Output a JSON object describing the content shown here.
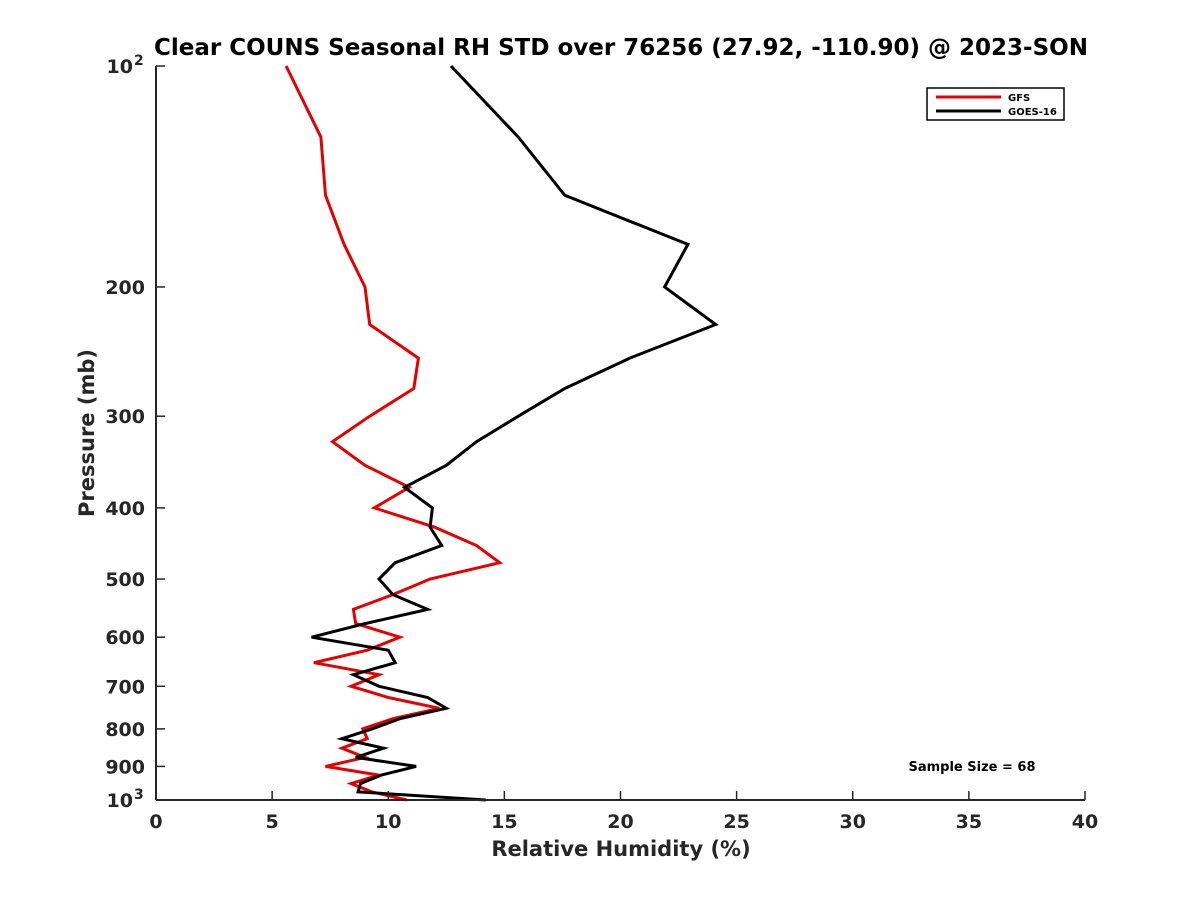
{
  "chart_data": {
    "type": "line",
    "title": "Clear COUNS Seasonal RH STD over 76256 (27.92, -110.90) @ 2023-SON",
    "xlabel": "Relative Humidity (%)",
    "ylabel": "Pressure (mb)",
    "xlim": [
      0,
      40
    ],
    "ylim": [
      100,
      1000
    ],
    "y_scale": "log",
    "y_reversed": true,
    "grid": false,
    "legend_position": "top-right",
    "x_ticks": [
      "0",
      "5",
      "10",
      "15",
      "20",
      "25",
      "30",
      "35",
      "40"
    ],
    "x_tick_values": [
      0,
      5,
      10,
      15,
      20,
      25,
      30,
      35,
      40
    ],
    "y_ticks": [
      {
        "value": 100,
        "base": "10",
        "exp": "2"
      },
      {
        "value": 200,
        "label": "200"
      },
      {
        "value": 300,
        "label": "300"
      },
      {
        "value": 400,
        "label": "400"
      },
      {
        "value": 500,
        "label": "500"
      },
      {
        "value": 600,
        "label": "600"
      },
      {
        "value": 700,
        "label": "700"
      },
      {
        "value": 800,
        "label": "800"
      },
      {
        "value": 900,
        "label": "900"
      },
      {
        "value": 1000,
        "base": "10",
        "exp": "3"
      }
    ],
    "annotation": "Sample Size = 68",
    "series": [
      {
        "name": "GFS",
        "color": "#e50000",
        "points": [
          [
            5.6,
            100
          ],
          [
            7.1,
            125
          ],
          [
            7.3,
            150
          ],
          [
            8.1,
            175
          ],
          [
            9.0,
            200
          ],
          [
            9.2,
            225
          ],
          [
            11.3,
            250
          ],
          [
            11.1,
            275
          ],
          [
            9.2,
            300
          ],
          [
            7.6,
            325
          ],
          [
            9.0,
            350
          ],
          [
            10.9,
            375
          ],
          [
            9.4,
            400
          ],
          [
            12.0,
            425
          ],
          [
            13.8,
            450
          ],
          [
            14.8,
            475
          ],
          [
            11.8,
            500
          ],
          [
            10.2,
            525
          ],
          [
            8.5,
            550
          ],
          [
            8.6,
            575
          ],
          [
            10.5,
            600
          ],
          [
            9.1,
            625
          ],
          [
            6.8,
            650
          ],
          [
            9.6,
            675
          ],
          [
            8.4,
            700
          ],
          [
            10.0,
            725
          ],
          [
            12.2,
            750
          ],
          [
            10.2,
            775
          ],
          [
            8.9,
            800
          ],
          [
            9.1,
            825
          ],
          [
            8.0,
            850
          ],
          [
            9.0,
            875
          ],
          [
            7.3,
            900
          ],
          [
            9.6,
            925
          ],
          [
            8.4,
            950
          ],
          [
            9.3,
            975
          ],
          [
            10.8,
            1000
          ]
        ]
      },
      {
        "name": "GOES-16",
        "color": "#000000",
        "points": [
          [
            12.7,
            100
          ],
          [
            15.6,
            125
          ],
          [
            17.6,
            150
          ],
          [
            22.9,
            175
          ],
          [
            21.9,
            200
          ],
          [
            24.1,
            225
          ],
          [
            20.4,
            250
          ],
          [
            17.6,
            275
          ],
          [
            15.6,
            300
          ],
          [
            13.8,
            325
          ],
          [
            12.5,
            350
          ],
          [
            10.7,
            375
          ],
          [
            11.9,
            400
          ],
          [
            11.8,
            425
          ],
          [
            12.3,
            450
          ],
          [
            10.3,
            475
          ],
          [
            9.6,
            500
          ],
          [
            10.2,
            525
          ],
          [
            11.7,
            550
          ],
          [
            9.0,
            575
          ],
          [
            6.7,
            600
          ],
          [
            10.0,
            625
          ],
          [
            10.3,
            650
          ],
          [
            8.5,
            675
          ],
          [
            9.6,
            700
          ],
          [
            11.7,
            725
          ],
          [
            12.5,
            750
          ],
          [
            10.5,
            775
          ],
          [
            9.3,
            800
          ],
          [
            8.0,
            825
          ],
          [
            9.8,
            850
          ],
          [
            8.6,
            875
          ],
          [
            11.2,
            900
          ],
          [
            9.7,
            925
          ],
          [
            8.8,
            950
          ],
          [
            8.7,
            975
          ],
          [
            14.2,
            1000
          ]
        ]
      }
    ]
  }
}
